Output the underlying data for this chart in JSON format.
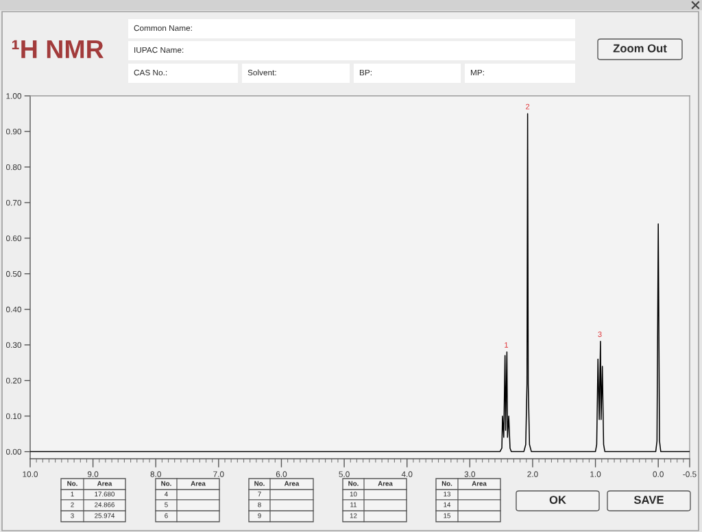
{
  "chart_data": {
    "type": "line",
    "title": "¹H NMR",
    "x": [
      10.0,
      2.52,
      2.49,
      2.48,
      2.46,
      2.44,
      2.43,
      2.41,
      2.4,
      2.38,
      2.36,
      2.34,
      2.14,
      2.11,
      2.09,
      2.08,
      2.07,
      2.05,
      2.02,
      1.0,
      0.98,
      0.96,
      0.94,
      0.92,
      0.91,
      0.89,
      0.87,
      0.85,
      0.04,
      0.02,
      0.0,
      -0.02,
      -0.04,
      -0.5
    ],
    "series": [
      {
        "color": "#000000",
        "values": [
          0.0,
          0.0,
          0.01,
          0.1,
          0.04,
          0.27,
          0.06,
          0.28,
          0.04,
          0.1,
          0.01,
          0.0,
          0.0,
          0.02,
          0.19,
          0.95,
          0.19,
          0.02,
          0.0,
          0.0,
          0.02,
          0.26,
          0.09,
          0.31,
          0.09,
          0.24,
          0.02,
          0.0,
          0.0,
          0.03,
          0.64,
          0.03,
          0.0,
          0.0
        ]
      }
    ],
    "xlim": [
      10,
      -0.5
    ],
    "xticks": [
      {
        "value": 10,
        "label": "10.0"
      },
      {
        "value": 9,
        "label": "9.0"
      },
      {
        "value": 8,
        "label": "8.0"
      },
      {
        "value": 7,
        "label": "7.0"
      },
      {
        "value": 6,
        "label": "6.0"
      },
      {
        "value": 5,
        "label": "5.0"
      },
      {
        "value": 4,
        "label": "4.0"
      },
      {
        "value": 3,
        "label": "3.0"
      },
      {
        "value": 2,
        "label": "2.0"
      },
      {
        "value": 1,
        "label": "1.0"
      },
      {
        "value": 0,
        "label": "0.0"
      },
      -0.5
    ],
    "ylim": [
      -0.02,
      1.0
    ],
    "yticks": [
      {
        "value": 0,
        "label": "0.00"
      },
      {
        "value": 0.1,
        "label": "0.10"
      },
      {
        "value": 0.2,
        "label": "0.20"
      },
      {
        "value": 0.3,
        "label": "0.30"
      },
      {
        "value": 0.4,
        "label": "0.40"
      },
      {
        "value": 0.5,
        "label": "0.50"
      },
      {
        "value": 0.6,
        "label": "0.60"
      },
      {
        "value": 0.7,
        "label": "0.70"
      },
      {
        "value": 0.8,
        "label": "0.80"
      },
      {
        "value": 0.9,
        "label": "0.90"
      },
      {
        "value": 1.0,
        "label": "1.00"
      }
    ],
    "annotations": [
      {
        "text": "1",
        "x": 2.42,
        "y": 0.28
      },
      {
        "text": "2",
        "x": 2.08,
        "y": 0.95
      },
      {
        "text": "3",
        "x": 0.93,
        "y": 0.31
      },
      "Common Name:",
      "IUPAC Name:",
      "CAS No.:",
      "Solvent:",
      "BP:",
      "MP:",
      "Zoom Out",
      "OK",
      "SAVE",
      "No.",
      "Area",
      "1",
      "17.680",
      "2",
      "24.866",
      "3",
      "25.974",
      "No.",
      "Area",
      "4",
      "5",
      "6",
      "No.",
      "Area",
      "7",
      "8",
      "9",
      "No.",
      "Area",
      "10",
      "11",
      "12",
      "No.",
      "Area",
      "13",
      "14",
      "15"
    ]
  }
}
